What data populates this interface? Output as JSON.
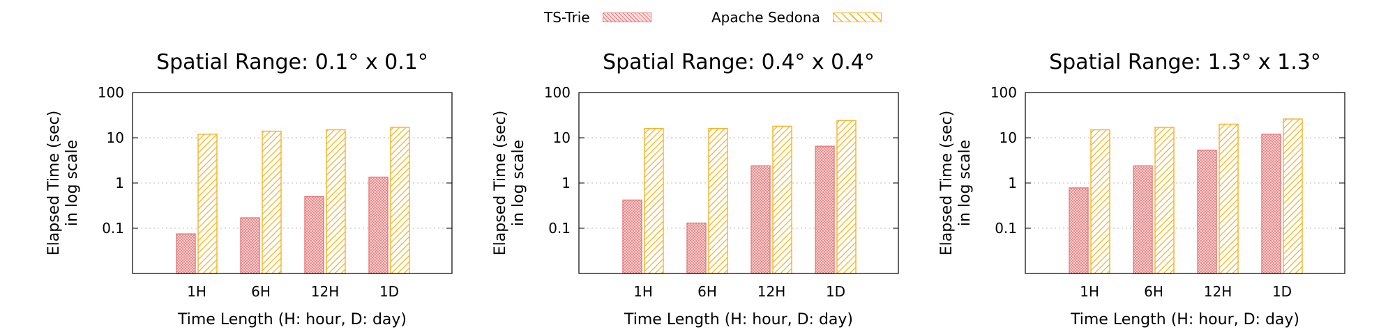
{
  "legend": {
    "series_0": "TS-Trie",
    "series_1": "Apache Sedona"
  },
  "colors": {
    "ts_trie": "#e8797b",
    "sedona": "#f5b324",
    "grid": "#bbbbbb"
  },
  "chart_data": [
    {
      "type": "bar",
      "title": "Spatial Range: 0.1° x 0.1°",
      "xlabel": "Time Length (H: hour, D: day)",
      "ylabel": [
        "Elapsed Time (sec)",
        "in log scale"
      ],
      "yscale": "log",
      "ylim": [
        0.01,
        100
      ],
      "yticks": [
        "100",
        "10",
        "1",
        "0.1"
      ],
      "categories": [
        "1H",
        "6H",
        "12H",
        "1D"
      ],
      "series": [
        {
          "name": "TS-Trie",
          "values": [
            0.075,
            0.17,
            0.5,
            1.35
          ]
        },
        {
          "name": "Apache Sedona",
          "values": [
            12,
            14,
            15,
            17
          ]
        }
      ],
      "grid": true,
      "legend": "top-center"
    },
    {
      "type": "bar",
      "title": "Spatial Range: 0.4° x 0.4°",
      "xlabel": "Time Length (H: hour, D: day)",
      "ylabel": [
        "Elapsed Time (sec)",
        "in log scale"
      ],
      "yscale": "log",
      "ylim": [
        0.01,
        100
      ],
      "yticks": [
        "100",
        "10",
        "1",
        "0.1"
      ],
      "categories": [
        "1H",
        "6H",
        "12H",
        "1D"
      ],
      "series": [
        {
          "name": "TS-Trie",
          "values": [
            0.42,
            0.13,
            2.4,
            6.5
          ]
        },
        {
          "name": "Apache Sedona",
          "values": [
            16,
            16,
            18,
            24
          ]
        }
      ],
      "grid": true,
      "legend": "top-center"
    },
    {
      "type": "bar",
      "title": "Spatial Range: 1.3° x 1.3°",
      "xlabel": "Time Length (H: hour, D: day)",
      "ylabel": [
        "Elapsed Time (sec)",
        "in log scale"
      ],
      "yscale": "log",
      "ylim": [
        0.01,
        100
      ],
      "yticks": [
        "100",
        "10",
        "1",
        "0.1"
      ],
      "categories": [
        "1H",
        "6H",
        "12H",
        "1D"
      ],
      "series": [
        {
          "name": "TS-Trie",
          "values": [
            0.78,
            2.4,
            5.3,
            12
          ]
        },
        {
          "name": "Apache Sedona",
          "values": [
            15,
            17,
            20,
            26
          ]
        }
      ],
      "grid": true,
      "legend": "top-center"
    }
  ]
}
